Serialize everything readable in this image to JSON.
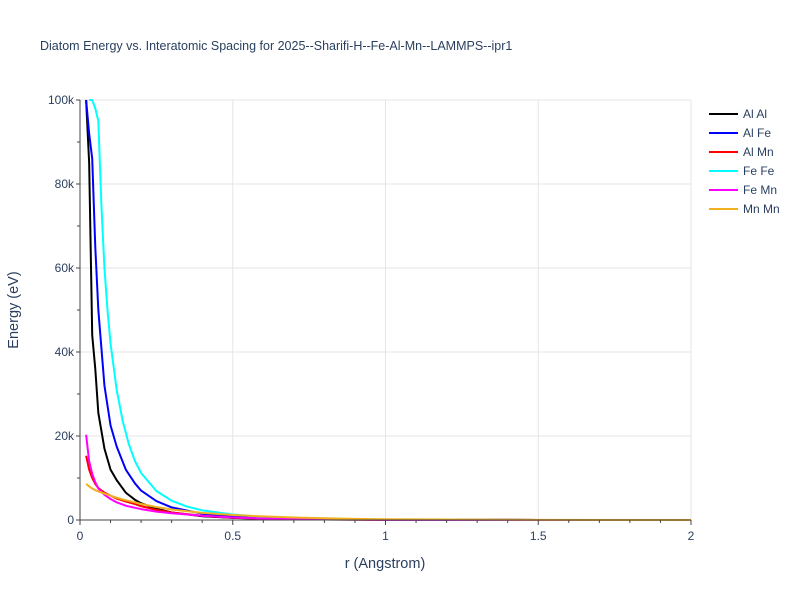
{
  "chart_data": {
    "type": "line",
    "title": "Diatom Energy vs. Interatomic Spacing for 2025--Sharifi-H--Fe-Al-Mn--LAMMPS--ipr1",
    "xlabel": "r (Angstrom)",
    "ylabel": "Energy (eV)",
    "xlim": [
      0,
      2
    ],
    "ylim": [
      0,
      100000
    ],
    "xticks": [
      0,
      0.5,
      1,
      1.5,
      2
    ],
    "xtick_labels": [
      "0",
      "0.5",
      "1",
      "1.5",
      "2"
    ],
    "yticks": [
      0,
      20000,
      40000,
      60000,
      80000,
      100000
    ],
    "ytick_labels": [
      "0",
      "20k",
      "40k",
      "60k",
      "80k",
      "100k"
    ],
    "grid": true,
    "legend_position": "top-right",
    "series": [
      {
        "name": "Al Al",
        "color": "#000000",
        "x": [
          0.02,
          0.03,
          0.04,
          0.05,
          0.06,
          0.08,
          0.1,
          0.12,
          0.15,
          0.18,
          0.2,
          0.25,
          0.3,
          0.4,
          0.5,
          0.6,
          0.8,
          1.0,
          1.5,
          2.0
        ],
        "y": [
          100000,
          85000,
          44000,
          36000,
          25500,
          17000,
          12000,
          9500,
          6500,
          4800,
          4000,
          2700,
          1800,
          900,
          500,
          300,
          120,
          50,
          10,
          0
        ]
      },
      {
        "name": "Al Fe",
        "color": "#0000ff",
        "x": [
          0.02,
          0.03,
          0.04,
          0.05,
          0.06,
          0.08,
          0.1,
          0.12,
          0.15,
          0.18,
          0.2,
          0.25,
          0.3,
          0.4,
          0.5,
          0.6,
          0.8,
          1.0,
          1.5,
          2.0
        ],
        "y": [
          100000,
          92000,
          86000,
          65000,
          50000,
          32000,
          22500,
          17500,
          12000,
          8700,
          7000,
          4500,
          3000,
          1500,
          800,
          450,
          180,
          70,
          15,
          0
        ]
      },
      {
        "name": "Al Mn",
        "color": "#ff0000",
        "x": [
          0.02,
          0.03,
          0.04,
          0.05,
          0.06,
          0.08,
          0.1,
          0.12,
          0.15,
          0.18,
          0.2,
          0.25,
          0.3,
          0.4,
          0.5,
          0.6,
          0.8,
          1.0,
          1.5,
          2.0
        ],
        "y": [
          15300,
          12000,
          10000,
          8600,
          7600,
          6500,
          5800,
          5100,
          4400,
          3800,
          3300,
          2400,
          1800,
          1000,
          550,
          320,
          130,
          50,
          10,
          0
        ]
      },
      {
        "name": "Fe Fe",
        "color": "#00ffff",
        "x": [
          0.03,
          0.04,
          0.05,
          0.06,
          0.07,
          0.08,
          0.09,
          0.1,
          0.12,
          0.14,
          0.16,
          0.18,
          0.2,
          0.25,
          0.3,
          0.35,
          0.4,
          0.5,
          0.6,
          0.8,
          1.0,
          1.5,
          2.0
        ],
        "y": [
          100000,
          100000,
          98000,
          95000,
          75000,
          60000,
          50000,
          42000,
          31000,
          23500,
          18000,
          14000,
          11200,
          6900,
          4600,
          3200,
          2300,
          1300,
          750,
          280,
          100,
          15,
          0
        ]
      },
      {
        "name": "Fe Mn",
        "color": "#ff00ff",
        "x": [
          0.02,
          0.03,
          0.04,
          0.05,
          0.06,
          0.08,
          0.1,
          0.12,
          0.15,
          0.18,
          0.2,
          0.25,
          0.3,
          0.4,
          0.5,
          0.6,
          0.8,
          1.0,
          1.5,
          2.0
        ],
        "y": [
          20300,
          14000,
          11000,
          9000,
          7500,
          6000,
          5000,
          4200,
          3400,
          2900,
          2600,
          2000,
          1600,
          1000,
          600,
          350,
          140,
          55,
          10,
          0
        ]
      },
      {
        "name": "Mn Mn",
        "color": "#f0b020",
        "x": [
          0.02,
          0.03,
          0.04,
          0.05,
          0.06,
          0.08,
          0.1,
          0.12,
          0.15,
          0.18,
          0.2,
          0.25,
          0.3,
          0.4,
          0.5,
          0.6,
          0.7,
          0.8,
          0.9,
          1.0,
          1.5,
          2.0
        ],
        "y": [
          8600,
          8000,
          7500,
          7100,
          6800,
          6300,
          5800,
          5300,
          4700,
          4200,
          3800,
          3100,
          2500,
          1700,
          1200,
          850,
          600,
          420,
          280,
          180,
          30,
          0
        ]
      }
    ]
  }
}
